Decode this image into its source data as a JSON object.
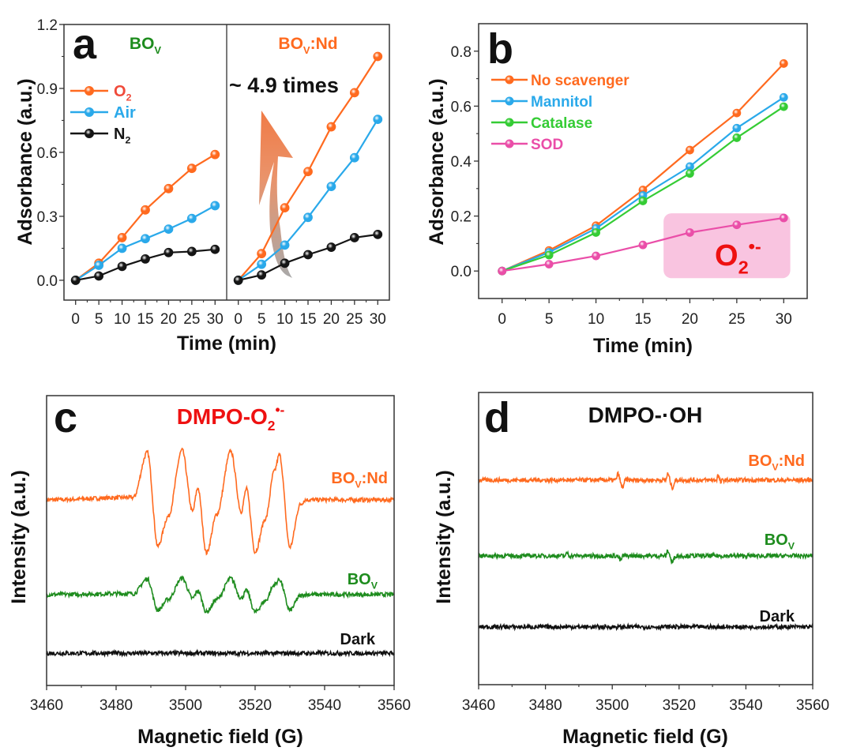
{
  "chart_data": [
    {
      "panel": "a",
      "type": "line",
      "ylabel": "Adsorbance (a.u.)",
      "xlabel": "Time (min)",
      "ylim": [
        -0.093,
        1.2
      ],
      "yticks": [
        0,
        0.3,
        0.6,
        0.9,
        1.2
      ],
      "xlim": [
        -2.5,
        32.5
      ],
      "xticks": [
        0,
        5,
        10,
        15,
        20,
        25,
        30
      ],
      "annotation": "~ 4.9 times",
      "legend": "top-left",
      "grid": false,
      "subpanels": [
        {
          "title": {
            "main": "BO",
            "sub": "V"
          },
          "title_color": "#1e8c1e",
          "x": [
            0,
            5,
            10,
            15,
            20,
            25,
            30
          ],
          "series": [
            {
              "name": {
                "main": "O",
                "sub": "2"
              },
              "color": "#ff6a1f",
              "values": [
                0,
                0.08,
                0.2,
                0.33,
                0.43,
                0.525,
                0.59
              ]
            },
            {
              "name": {
                "main": "Air"
              },
              "color": "#2aa9ea",
              "values": [
                0,
                0.07,
                0.15,
                0.195,
                0.24,
                0.29,
                0.35
              ]
            },
            {
              "name": {
                "main": "N",
                "sub": "2"
              },
              "color": "#151515",
              "values": [
                0,
                0.02,
                0.065,
                0.1,
                0.13,
                0.135,
                0.145
              ]
            }
          ]
        },
        {
          "title": {
            "main": "BO",
            "sub": "V",
            "suffix": ":Nd"
          },
          "title_color": "#ff6a1f",
          "x": [
            0,
            5,
            10,
            15,
            20,
            25,
            30
          ],
          "series": [
            {
              "name": {
                "main": "O",
                "sub": "2"
              },
              "color": "#ff6a1f",
              "values": [
                0,
                0.125,
                0.34,
                0.51,
                0.72,
                0.88,
                1.05
              ]
            },
            {
              "name": {
                "main": "Air"
              },
              "color": "#2aa9ea",
              "values": [
                0,
                0.075,
                0.165,
                0.295,
                0.44,
                0.575,
                0.755
              ]
            },
            {
              "name": {
                "main": "N",
                "sub": "2"
              },
              "color": "#151515",
              "values": [
                0,
                0.025,
                0.08,
                0.12,
                0.155,
                0.2,
                0.215
              ]
            }
          ]
        }
      ]
    },
    {
      "panel": "b",
      "type": "line",
      "ylabel": "Adsorbance (a.u.)",
      "xlabel": "Time (min)",
      "ylim": [
        -0.1,
        0.9
      ],
      "yticks": [
        0,
        0.2,
        0.4,
        0.6,
        0.8
      ],
      "xlim": [
        -2.5,
        32.5
      ],
      "xticks": [
        0,
        5,
        10,
        15,
        20,
        25,
        30
      ],
      "legend": "top-left",
      "grid": false,
      "x": [
        0,
        5,
        10,
        15,
        20,
        25,
        30
      ],
      "series": [
        {
          "name": {
            "main": "No scavenger"
          },
          "color": "#ff6a1f",
          "values": [
            0,
            0.075,
            0.165,
            0.295,
            0.44,
            0.575,
            0.755
          ]
        },
        {
          "name": {
            "main": "Mannitol"
          },
          "color": "#2aa9ea",
          "values": [
            0,
            0.068,
            0.155,
            0.275,
            0.38,
            0.52,
            0.632
          ]
        },
        {
          "name": {
            "main": "Catalase"
          },
          "color": "#35cc35",
          "values": [
            0,
            0.058,
            0.14,
            0.255,
            0.355,
            0.485,
            0.598
          ]
        },
        {
          "name": {
            "main": "SOD"
          },
          "color": "#ea4ea8",
          "values": [
            0,
            0.025,
            0.055,
            0.095,
            0.14,
            0.168,
            0.193
          ]
        }
      ],
      "highlight": {
        "label": {
          "main": "O",
          "sub": "2",
          "sup": "•-"
        },
        "label_color": "#ee1111",
        "fill": "#f9c4e0",
        "x_range": [
          17.2,
          30.7
        ],
        "y_range": [
          -0.026,
          0.21
        ]
      }
    },
    {
      "panel": "c",
      "type": "line",
      "title": {
        "main": "DMPO-O",
        "sub": "2",
        "sup": "•-"
      },
      "title_color": "#ee1111",
      "ylabel": "Intensity (a.u.)",
      "xlabel": "Magnetic field (G)",
      "xlim": [
        3460,
        3560
      ],
      "xticks": [
        3460,
        3480,
        3500,
        3520,
        3540,
        3560
      ],
      "ylim": [
        0,
        6.12
      ],
      "series": [
        {
          "name": {
            "main": "BO",
            "sub": "V",
            "suffix": ":Nd"
          },
          "color": "#ff6a1f",
          "offset": 3.92,
          "points": [
            [
              3460,
              0
            ],
            [
              3485,
              0.05
            ],
            [
              3489,
              1.0
            ],
            [
              3492,
              -0.98
            ],
            [
              3495,
              -0.35
            ],
            [
              3499,
              1.05
            ],
            [
              3502,
              -0.25
            ],
            [
              3503.5,
              0.25
            ],
            [
              3506,
              -1.12
            ],
            [
              3509,
              -0.3
            ],
            [
              3513,
              1.03
            ],
            [
              3516,
              -0.25
            ],
            [
              3517.5,
              0.23
            ],
            [
              3520,
              -1.1
            ],
            [
              3523,
              -0.4
            ],
            [
              3525.5,
              0.6
            ],
            [
              3527,
              0.95
            ],
            [
              3530,
              -1.0
            ],
            [
              3533,
              -0.1
            ],
            [
              3534.5,
              0
            ],
            [
              3560,
              0
            ]
          ]
        },
        {
          "name": {
            "main": "BO",
            "sub": "V"
          },
          "color": "#1e8c1e",
          "offset": 1.92,
          "points": [
            [
              3460,
              0
            ],
            [
              3485,
              0.02
            ],
            [
              3489,
              0.33
            ],
            [
              3492,
              -0.33
            ],
            [
              3495,
              -0.1
            ],
            [
              3499,
              0.35
            ],
            [
              3502,
              -0.08
            ],
            [
              3503.5,
              0.08
            ],
            [
              3506,
              -0.37
            ],
            [
              3509,
              -0.1
            ],
            [
              3513,
              0.34
            ],
            [
              3516,
              -0.08
            ],
            [
              3517.5,
              0.08
            ],
            [
              3520,
              -0.37
            ],
            [
              3523,
              -0.13
            ],
            [
              3525.5,
              0.2
            ],
            [
              3527,
              0.32
            ],
            [
              3530,
              -0.33
            ],
            [
              3533,
              -0.03
            ],
            [
              3534.5,
              0
            ],
            [
              3560,
              0
            ]
          ]
        },
        {
          "name": {
            "main": "Dark"
          },
          "color": "#111111",
          "offset": 0.68,
          "points": [
            [
              3460,
              0
            ],
            [
              3560,
              0
            ]
          ]
        }
      ]
    },
    {
      "panel": "d",
      "type": "line",
      "title": {
        "main": "DMPO-·OH"
      },
      "title_color": "#111111",
      "ylabel": "Intensity (a.u.)",
      "xlabel": "Magnetic field (G)",
      "xlim": [
        3460,
        3560
      ],
      "xticks": [
        3460,
        3480,
        3500,
        3520,
        3540,
        3560
      ],
      "ylim": [
        0,
        6.17
      ],
      "series": [
        {
          "name": {
            "main": "BO",
            "sub": "V",
            "suffix": ":Nd"
          },
          "color": "#ff6a1f",
          "offset": 4.32,
          "points": [
            [
              3460,
              0
            ],
            [
              3501,
              0
            ],
            [
              3501.7,
              0.13
            ],
            [
              3503,
              -0.16
            ],
            [
              3504,
              0
            ],
            [
              3516,
              0
            ],
            [
              3516.6,
              0.13
            ],
            [
              3518,
              -0.16
            ],
            [
              3519,
              0
            ],
            [
              3531.2,
              0
            ],
            [
              3531.6,
              0.1
            ],
            [
              3532.5,
              -0.05
            ],
            [
              3533,
              0
            ],
            [
              3560,
              0
            ]
          ]
        },
        {
          "name": {
            "main": "BO",
            "sub": "V"
          },
          "color": "#1e8c1e",
          "offset": 2.72,
          "points": [
            [
              3460,
              0
            ],
            [
              3486,
              0
            ],
            [
              3486.5,
              0.07
            ],
            [
              3487.2,
              0
            ],
            [
              3501.5,
              0
            ],
            [
              3502.5,
              -0.1
            ],
            [
              3503.2,
              0
            ],
            [
              3516,
              0
            ],
            [
              3516.6,
              0.11
            ],
            [
              3518,
              -0.14
            ],
            [
              3519,
              0
            ],
            [
              3560,
              0
            ]
          ]
        },
        {
          "name": {
            "main": "Dark"
          },
          "color": "#111111",
          "offset": 1.22,
          "points": [
            [
              3460,
              0
            ],
            [
              3560,
              0
            ]
          ]
        }
      ]
    }
  ]
}
